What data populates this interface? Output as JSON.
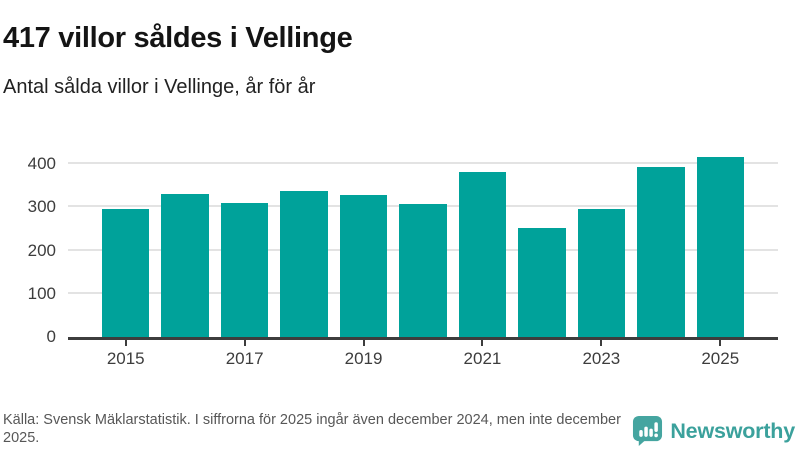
{
  "header": {
    "title": "417 villor såldes i Vellinge",
    "subtitle": "Antal sålda villor i Vellinge, år för år"
  },
  "chart_data": {
    "type": "bar",
    "title": "417 villor såldes i Vellinge",
    "subtitle": "Antal sålda villor i Vellinge, år för år",
    "categories": [
      "2015",
      "2016",
      "2017",
      "2018",
      "2019",
      "2020",
      "2021",
      "2022",
      "2023",
      "2024",
      "2025"
    ],
    "values": [
      295,
      331,
      310,
      337,
      328,
      308,
      381,
      253,
      296,
      394,
      417
    ],
    "xlabel": "",
    "ylabel": "",
    "ylim": [
      0,
      420
    ],
    "yticks": [
      0,
      100,
      200,
      300,
      400
    ],
    "xticks": [
      "2015",
      "2017",
      "2019",
      "2021",
      "2023",
      "2025"
    ],
    "grid": true,
    "legend": false,
    "bar_color": "#00a29a",
    "axis_color": "#3d3d3d",
    "gridline_color": "#e3e3e3"
  },
  "footer": {
    "source_text": "Källa: Svensk Mäklarstatistik. I siffrorna för 2025 ingår även december 2024, men inte december 2025.",
    "brand": {
      "name": "Newsworthy",
      "color": "#3ba19c",
      "icon": "newsworthy-speech-bubble-chart-icon",
      "icon_color": "#45a5a0"
    }
  }
}
